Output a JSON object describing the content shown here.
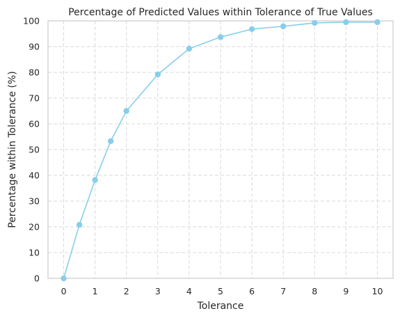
{
  "chart_data": {
    "type": "line",
    "title": "Percentage of Predicted Values within Tolerance of True Values",
    "xlabel": "Tolerance",
    "ylabel": "Percentage within Tolerance (%)",
    "xlim": [
      -0.5,
      10.5
    ],
    "ylim": [
      0,
      100
    ],
    "xticks": [
      0,
      1,
      2,
      3,
      4,
      5,
      6,
      7,
      8,
      9,
      10
    ],
    "yticks": [
      0,
      10,
      20,
      30,
      40,
      50,
      60,
      70,
      80,
      90,
      100
    ],
    "grid": true,
    "legend": "none",
    "series": [
      {
        "color": "#87CEEB",
        "x": [
          0,
          0.5,
          1,
          1.5,
          2,
          3,
          4,
          5,
          6,
          7,
          8,
          9,
          10
        ],
        "y": [
          0,
          20.8,
          38.2,
          53.3,
          65.0,
          79.2,
          89.2,
          93.7,
          96.8,
          97.9,
          99.2,
          99.5,
          99.5
        ]
      }
    ]
  }
}
